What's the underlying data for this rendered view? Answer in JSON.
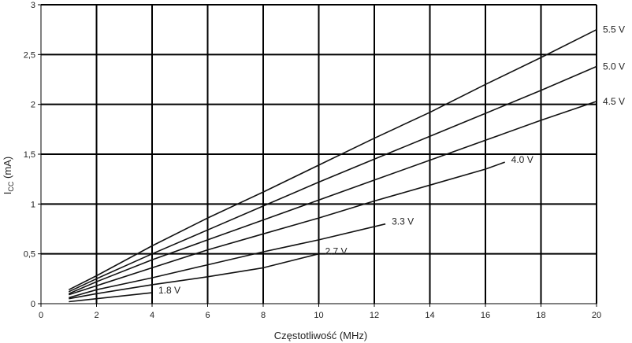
{
  "chart_data": {
    "type": "line",
    "xlabel": "Częstotliwość (MHz)",
    "ylabel_main": "I",
    "ylabel_sub": "CC",
    "ylabel_rest": " (mA)",
    "xlim": [
      0,
      20
    ],
    "ylim": [
      0,
      3
    ],
    "x_ticks": [
      "0",
      "2",
      "4",
      "6",
      "8",
      "10",
      "12",
      "14",
      "16",
      "18",
      "20"
    ],
    "y_ticks": [
      "0",
      "0,5",
      "1",
      "1,5",
      "2",
      "2,5",
      "3"
    ],
    "grid": true,
    "series": [
      {
        "name": "5.5 V",
        "x": [
          1,
          2,
          4,
          6,
          8,
          10,
          12,
          14,
          16,
          18,
          20
        ],
        "y": [
          0.14,
          0.28,
          0.58,
          0.86,
          1.12,
          1.39,
          1.66,
          1.92,
          2.2,
          2.47,
          2.75
        ]
      },
      {
        "name": "5.0 V",
        "x": [
          1,
          2,
          4,
          6,
          8,
          10,
          12,
          14,
          16,
          18,
          20
        ],
        "y": [
          0.12,
          0.25,
          0.5,
          0.74,
          0.98,
          1.22,
          1.45,
          1.68,
          1.91,
          2.14,
          2.38
        ]
      },
      {
        "name": "4.5 V",
        "x": [
          1,
          2,
          4,
          6,
          8,
          10,
          12,
          14,
          16,
          18,
          20
        ],
        "y": [
          0.1,
          0.22,
          0.44,
          0.64,
          0.84,
          1.04,
          1.24,
          1.44,
          1.64,
          1.84,
          2.03
        ]
      },
      {
        "name": "4.0 V",
        "x": [
          1,
          2,
          4,
          6,
          8,
          10,
          12,
          14,
          16,
          16.7
        ],
        "y": [
          0.09,
          0.18,
          0.36,
          0.54,
          0.7,
          0.86,
          1.03,
          1.19,
          1.35,
          1.42
        ]
      },
      {
        "name": "3.3 V",
        "x": [
          1,
          2,
          4,
          6,
          8,
          10,
          12.4
        ],
        "y": [
          0.06,
          0.14,
          0.26,
          0.39,
          0.52,
          0.64,
          0.8
        ]
      },
      {
        "name": "2.7 V",
        "x": [
          1,
          2,
          4,
          6,
          8,
          10
        ],
        "y": [
          0.05,
          0.1,
          0.19,
          0.27,
          0.36,
          0.5
        ]
      },
      {
        "name": "1.8 V",
        "x": [
          1,
          2,
          4
        ],
        "y": [
          0.02,
          0.05,
          0.11
        ]
      }
    ]
  }
}
